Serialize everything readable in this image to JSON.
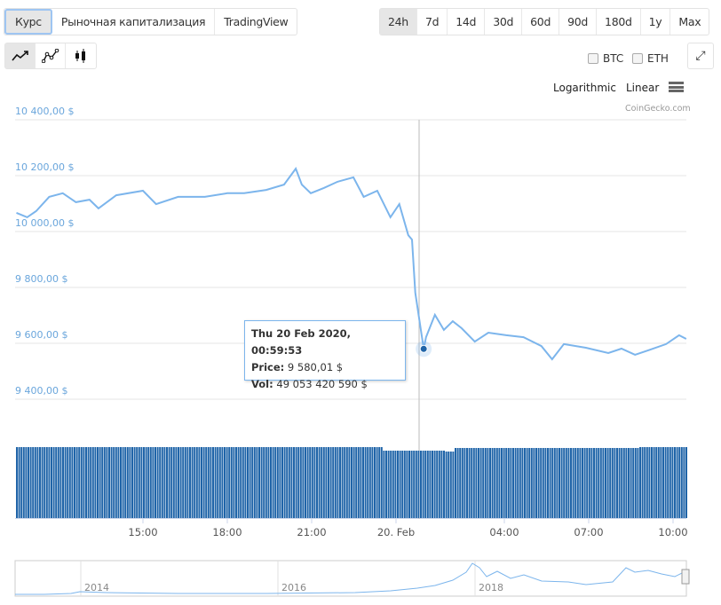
{
  "tabs": [
    {
      "label": "Курс",
      "active": true
    },
    {
      "label": "Рыночная капитализация"
    },
    {
      "label": "TradingView"
    }
  ],
  "ranges": [
    {
      "label": "24h",
      "active": true
    },
    {
      "label": "7d"
    },
    {
      "label": "14d"
    },
    {
      "label": "30d"
    },
    {
      "label": "60d"
    },
    {
      "label": "90d"
    },
    {
      "label": "180d"
    },
    {
      "label": "1y"
    },
    {
      "label": "Max"
    }
  ],
  "chart_types": [
    {
      "icon": "line-chart-icon",
      "active": true
    },
    {
      "icon": "point-line-chart-icon"
    },
    {
      "icon": "candlestick-icon"
    }
  ],
  "compare": [
    {
      "label": "BTC",
      "checked": false
    },
    {
      "label": "ETH",
      "checked": false
    }
  ],
  "fullscreen_icon": "expand-icon",
  "scale": {
    "log_label": "Logarithmic",
    "linear_label": "Linear",
    "menu_icon": "hamburger-icon"
  },
  "credit": "CoinGecko.com",
  "colors": {
    "line": "#7cb5ec",
    "volume": "#1f64a8",
    "accent": "#9ec5f2"
  },
  "chart_data": {
    "type": "line",
    "yticks": [
      "10 400,00 $",
      "10 200,00 $",
      "10 000,00 $",
      "9 800,00 $",
      "9 600,00 $",
      "9 400,00 $"
    ],
    "ylim": [
      9400,
      10400
    ],
    "xticks": [
      "15:00",
      "18:00",
      "21:00",
      "20. Feb",
      "04:00",
      "07:00",
      "10:00"
    ],
    "series": [
      {
        "points": [
          [
            "2020-02-19 10:30",
            10067
          ],
          [
            "2020-02-19 10:53",
            10051
          ],
          [
            "2020-02-19 11:12",
            10073
          ],
          [
            "2020-02-19 11:40",
            10124
          ],
          [
            "2020-02-19 12:09",
            10137
          ],
          [
            "2020-02-19 12:37",
            10105
          ],
          [
            "2020-02-19 13:06",
            10114
          ],
          [
            "2020-02-19 13:25",
            10083
          ],
          [
            "2020-02-19 14:03",
            10130
          ],
          [
            "2020-02-19 15:00",
            10146
          ],
          [
            "2020-02-19 15:28",
            10098
          ],
          [
            "2020-02-19 16:15",
            10124
          ],
          [
            "2020-02-19 17:12",
            10124
          ],
          [
            "2020-02-19 18:00",
            10137
          ],
          [
            "2020-02-19 18:36",
            10137
          ],
          [
            "2020-02-19 19:23",
            10149
          ],
          [
            "2020-02-19 20:01",
            10168
          ],
          [
            "2020-02-19 20:26",
            10225
          ],
          [
            "2020-02-19 20:39",
            10168
          ],
          [
            "2020-02-19 20:58",
            10137
          ],
          [
            "2020-02-19 21:26",
            10156
          ],
          [
            "2020-02-19 21:55",
            10178
          ],
          [
            "2020-02-19 22:29",
            10194
          ],
          [
            "2020-02-19 22:51",
            10124
          ],
          [
            "2020-02-19 23:20",
            10146
          ],
          [
            "2020-02-19 23:48",
            10051
          ],
          [
            "2020-02-20 00:07",
            10098
          ],
          [
            "2020-02-20 00:26",
            9987
          ],
          [
            "2020-02-20 00:34",
            9971
          ],
          [
            "2020-02-20 00:41",
            9781
          ],
          [
            "2020-02-20 00:59",
            9580
          ],
          [
            "2020-02-20 01:04",
            9622
          ],
          [
            "2020-02-20 01:23",
            9702
          ],
          [
            "2020-02-20 01:42",
            9648
          ],
          [
            "2020-02-20 02:01",
            9679
          ],
          [
            "2020-02-20 02:20",
            9654
          ],
          [
            "2020-02-20 02:48",
            9606
          ],
          [
            "2020-02-20 03:17",
            9638
          ],
          [
            "2020-02-20 03:55",
            9629
          ],
          [
            "2020-02-20 04:32",
            9622
          ],
          [
            "2020-02-20 05:10",
            9590
          ],
          [
            "2020-02-20 05:33",
            9543
          ],
          [
            "2020-02-20 05:58",
            9597
          ],
          [
            "2020-02-20 06:45",
            9584
          ],
          [
            "2020-02-20 07:33",
            9565
          ],
          [
            "2020-02-20 08:01",
            9581
          ],
          [
            "2020-02-20 08:30",
            9559
          ],
          [
            "2020-02-20 08:58",
            9575
          ],
          [
            "2020-02-20 09:36",
            9597
          ],
          [
            "2020-02-20 10:04",
            9629
          ],
          [
            "2020-02-20 10:19",
            9616
          ]
        ]
      }
    ],
    "tooltip": {
      "date": "Thu 20 Feb 2020, 00:59:53",
      "price_label": "Price:",
      "price": "9 580,01 $",
      "vol_label": "Vol:",
      "vol": "49 053 420 590 $"
    },
    "navigator_labels": [
      "2014",
      "2016",
      "2018"
    ]
  }
}
